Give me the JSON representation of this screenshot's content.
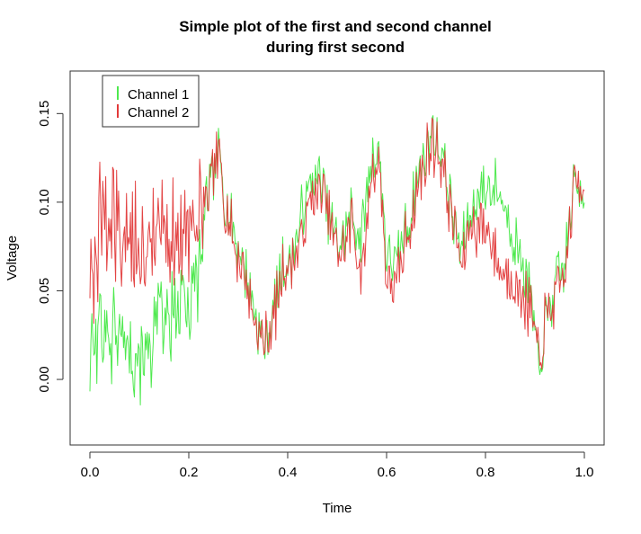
{
  "chart_data": {
    "type": "line",
    "title": "Simple plot of the first and second channel",
    "subtitle": "during first second",
    "xlabel": "Time",
    "ylabel": "Voltage",
    "xlim": [
      -0.04,
      1.04
    ],
    "ylim": [
      -0.037,
      0.174
    ],
    "x_ticks": [
      0.0,
      0.2,
      0.4,
      0.6,
      0.8,
      1.0
    ],
    "x_tick_labels": [
      "0.0",
      "0.2",
      "0.4",
      "0.6",
      "0.8",
      "1.0"
    ],
    "y_ticks": [
      0.0,
      0.05,
      0.1,
      0.15
    ],
    "y_tick_labels": [
      "0.00",
      "0.05",
      "0.10",
      "0.15"
    ],
    "grid": false,
    "legend_position": "top-left",
    "sample_interval": 0.002,
    "series": [
      {
        "name": "Channel 1",
        "color": "#4EE94E",
        "anchors": [
          [
            0.0,
            0.01
          ],
          [
            0.02,
            0.03
          ],
          [
            0.04,
            0.025
          ],
          [
            0.06,
            0.03
          ],
          [
            0.08,
            0.02
          ],
          [
            0.1,
            0.015
          ],
          [
            0.12,
            0.02
          ],
          [
            0.14,
            0.03
          ],
          [
            0.16,
            0.03
          ],
          [
            0.18,
            0.04
          ],
          [
            0.2,
            0.045
          ],
          [
            0.22,
            0.06
          ],
          [
            0.235,
            0.1
          ],
          [
            0.25,
            0.115
          ],
          [
            0.26,
            0.125
          ],
          [
            0.28,
            0.095
          ],
          [
            0.3,
            0.075
          ],
          [
            0.32,
            0.055
          ],
          [
            0.34,
            0.03
          ],
          [
            0.355,
            0.02
          ],
          [
            0.37,
            0.035
          ],
          [
            0.39,
            0.065
          ],
          [
            0.41,
            0.07
          ],
          [
            0.43,
            0.095
          ],
          [
            0.45,
            0.115
          ],
          [
            0.47,
            0.11
          ],
          [
            0.49,
            0.085
          ],
          [
            0.51,
            0.075
          ],
          [
            0.53,
            0.095
          ],
          [
            0.55,
            0.08
          ],
          [
            0.57,
            0.125
          ],
          [
            0.585,
            0.13
          ],
          [
            0.6,
            0.07
          ],
          [
            0.62,
            0.065
          ],
          [
            0.64,
            0.085
          ],
          [
            0.67,
            0.12
          ],
          [
            0.69,
            0.14
          ],
          [
            0.71,
            0.13
          ],
          [
            0.73,
            0.1
          ],
          [
            0.75,
            0.07
          ],
          [
            0.77,
            0.095
          ],
          [
            0.79,
            0.105
          ],
          [
            0.81,
            0.11
          ],
          [
            0.83,
            0.105
          ],
          [
            0.85,
            0.09
          ],
          [
            0.87,
            0.07
          ],
          [
            0.89,
            0.05
          ],
          [
            0.91,
            0.0
          ],
          [
            0.92,
            0.03
          ],
          [
            0.94,
            0.05
          ],
          [
            0.96,
            0.065
          ],
          [
            0.98,
            0.11
          ],
          [
            1.0,
            0.11
          ]
        ]
      },
      {
        "name": "Channel 2",
        "color": "#E23A3A",
        "anchors": [
          [
            0.0,
            0.045
          ],
          [
            0.02,
            0.085
          ],
          [
            0.04,
            0.09
          ],
          [
            0.06,
            0.085
          ],
          [
            0.08,
            0.08
          ],
          [
            0.1,
            0.075
          ],
          [
            0.12,
            0.08
          ],
          [
            0.14,
            0.085
          ],
          [
            0.16,
            0.08
          ],
          [
            0.18,
            0.085
          ],
          [
            0.2,
            0.09
          ],
          [
            0.22,
            0.095
          ],
          [
            0.235,
            0.1
          ],
          [
            0.25,
            0.115
          ],
          [
            0.26,
            0.125
          ],
          [
            0.28,
            0.09
          ],
          [
            0.3,
            0.07
          ],
          [
            0.32,
            0.05
          ],
          [
            0.34,
            0.025
          ],
          [
            0.355,
            0.02
          ],
          [
            0.37,
            0.03
          ],
          [
            0.39,
            0.06
          ],
          [
            0.41,
            0.065
          ],
          [
            0.43,
            0.085
          ],
          [
            0.45,
            0.105
          ],
          [
            0.47,
            0.105
          ],
          [
            0.49,
            0.08
          ],
          [
            0.51,
            0.07
          ],
          [
            0.53,
            0.09
          ],
          [
            0.55,
            0.055
          ],
          [
            0.57,
            0.12
          ],
          [
            0.585,
            0.125
          ],
          [
            0.6,
            0.06
          ],
          [
            0.62,
            0.05
          ],
          [
            0.64,
            0.08
          ],
          [
            0.67,
            0.115
          ],
          [
            0.69,
            0.135
          ],
          [
            0.71,
            0.125
          ],
          [
            0.73,
            0.095
          ],
          [
            0.75,
            0.065
          ],
          [
            0.77,
            0.085
          ],
          [
            0.79,
            0.09
          ],
          [
            0.81,
            0.08
          ],
          [
            0.83,
            0.06
          ],
          [
            0.85,
            0.06
          ],
          [
            0.87,
            0.05
          ],
          [
            0.89,
            0.04
          ],
          [
            0.91,
            0.005
          ],
          [
            0.92,
            0.035
          ],
          [
            0.94,
            0.045
          ],
          [
            0.96,
            0.06
          ],
          [
            0.98,
            0.11
          ],
          [
            1.0,
            0.11
          ]
        ]
      }
    ]
  }
}
